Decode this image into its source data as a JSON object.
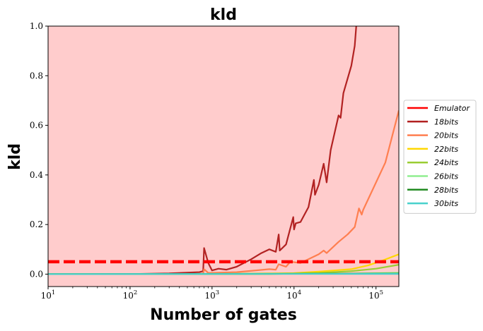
{
  "chart_data": {
    "type": "line",
    "title": "kld",
    "xlabel": "Number of gates",
    "ylabel": "kld",
    "xscale": "log",
    "xlim": [
      10,
      190000
    ],
    "ylim": [
      -0.05,
      1.0
    ],
    "x_ticks": [
      {
        "base": "10",
        "exp": "1"
      },
      {
        "base": "10",
        "exp": "2"
      },
      {
        "base": "10",
        "exp": "3"
      },
      {
        "base": "10",
        "exp": "4"
      },
      {
        "base": "10",
        "exp": "5"
      }
    ],
    "y_ticks": [
      "0.0",
      "0.2",
      "0.4",
      "0.6",
      "0.8",
      "1.0"
    ],
    "legend_position": "right",
    "background_band": {
      "from": -0.05,
      "to": 1.0,
      "color": "#ffcccc"
    },
    "series": [
      {
        "name": "Emulator",
        "color": "#ff0000",
        "style": "dashed",
        "x": [
          10,
          190000
        ],
        "y": [
          0.05,
          0.05
        ]
      },
      {
        "name": "18bits",
        "color": "#b22222",
        "style": "solid",
        "x": [
          10,
          100,
          300,
          700,
          780,
          800,
          900,
          1000,
          1200,
          1500,
          2000,
          3000,
          4000,
          5000,
          6000,
          6500,
          6700,
          8000,
          9800,
          10000,
          10500,
          12000,
          15000,
          17500,
          18000,
          20000,
          23000,
          25000,
          28000,
          35000,
          37000,
          40000,
          50000,
          55000,
          58000
        ],
        "y": [
          0.0,
          0.0,
          0.003,
          0.008,
          0.012,
          0.105,
          0.045,
          0.015,
          0.022,
          0.018,
          0.03,
          0.06,
          0.085,
          0.1,
          0.09,
          0.16,
          0.095,
          0.12,
          0.23,
          0.18,
          0.205,
          0.21,
          0.27,
          0.38,
          0.32,
          0.36,
          0.445,
          0.37,
          0.5,
          0.64,
          0.63,
          0.73,
          0.84,
          0.92,
          1.02
        ]
      },
      {
        "name": "20bits",
        "color": "#ff7f50",
        "style": "solid",
        "x": [
          10,
          500,
          780,
          800,
          900,
          2000,
          5000,
          6000,
          6500,
          8000,
          9000,
          12000,
          15000,
          20000,
          23000,
          25000,
          35000,
          45000,
          55000,
          62000,
          67000,
          70000,
          130000,
          190000
        ],
        "y": [
          0.0,
          0.0,
          0.002,
          0.02,
          0.005,
          0.008,
          0.02,
          0.018,
          0.04,
          0.03,
          0.05,
          0.045,
          0.06,
          0.08,
          0.095,
          0.085,
          0.13,
          0.16,
          0.19,
          0.265,
          0.24,
          0.26,
          0.45,
          0.66
        ]
      },
      {
        "name": "22bits",
        "color": "#ffd700",
        "style": "solid",
        "x": [
          10,
          1000,
          10000,
          20000,
          50000,
          80000,
          120000,
          190000
        ],
        "y": [
          0.0,
          0.0,
          0.004,
          0.01,
          0.02,
          0.035,
          0.055,
          0.08
        ]
      },
      {
        "name": "24bits",
        "color": "#9acd32",
        "style": "solid",
        "x": [
          10,
          5000,
          20000,
          50000,
          100000,
          190000
        ],
        "y": [
          0.0,
          0.0,
          0.005,
          0.012,
          0.022,
          0.038
        ]
      },
      {
        "name": "26bits",
        "color": "#90ee90",
        "style": "solid",
        "x": [
          10,
          50000,
          190000
        ],
        "y": [
          0.0,
          0.002,
          0.006
        ]
      },
      {
        "name": "28bits",
        "color": "#228b22",
        "style": "solid",
        "x": [
          10,
          190000
        ],
        "y": [
          0.0,
          0.002
        ]
      },
      {
        "name": "30bits",
        "color": "#48d1cc",
        "style": "solid",
        "x": [
          10,
          190000
        ],
        "y": [
          0.0,
          0.001
        ]
      }
    ]
  }
}
